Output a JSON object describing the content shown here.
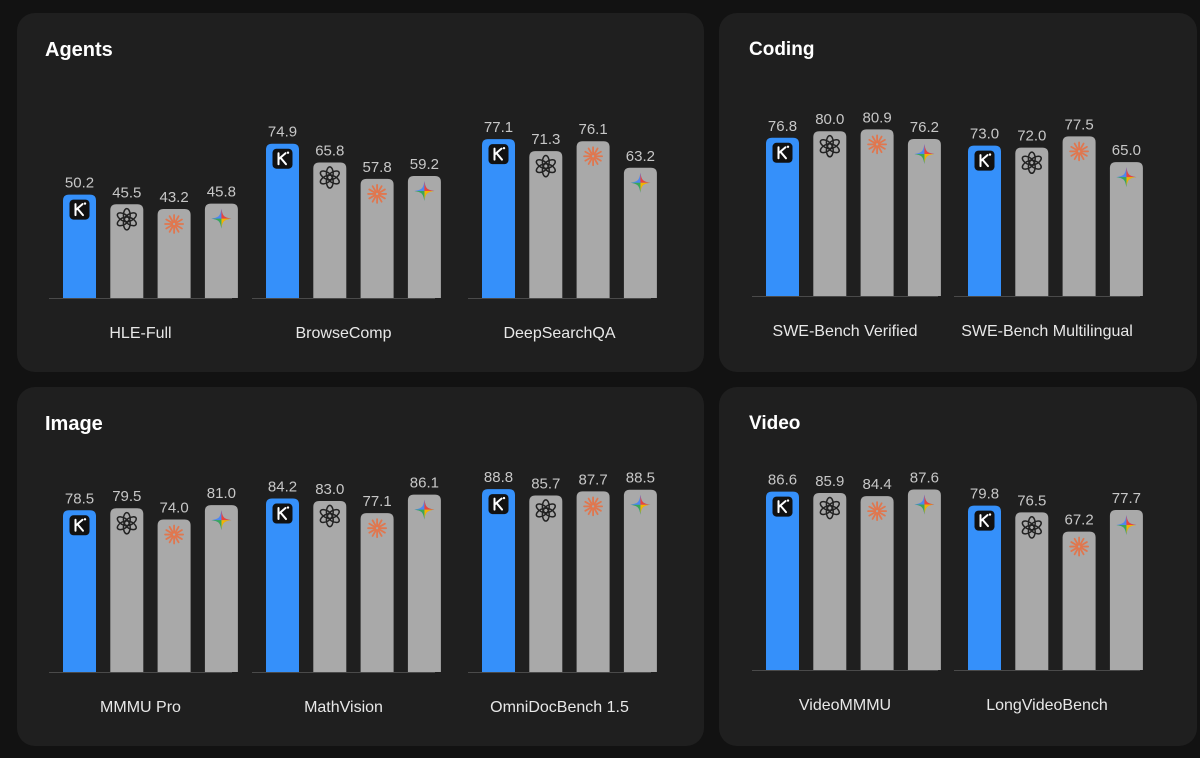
{
  "colors": {
    "highlight": "#3590fa",
    "bar": "#a9a9a9",
    "baseline": "#4a4a4a",
    "claude": "#e0774f"
  },
  "icons": [
    "k-logo-icon",
    "openai-icon",
    "claude-icon",
    "gemini-icon"
  ],
  "chart_data": [
    {
      "type": "bar",
      "title": "Agents",
      "ylim": [
        0,
        100
      ],
      "categories": [
        "HLE-Full",
        "BrowseComp",
        "DeepSearchQA"
      ],
      "series": [
        {
          "values": [
            50.2,
            74.9,
            77.1
          ]
        },
        {
          "values": [
            45.5,
            65.8,
            71.3
          ]
        },
        {
          "values": [
            43.2,
            57.8,
            76.1
          ]
        },
        {
          "values": [
            45.8,
            59.2,
            63.2
          ]
        }
      ]
    },
    {
      "type": "bar",
      "title": "Coding",
      "ylim": [
        0,
        100
      ],
      "categories": [
        "SWE-Bench Verified",
        "SWE-Bench Multilingual"
      ],
      "series": [
        {
          "values": [
            76.8,
            73.0
          ]
        },
        {
          "values": [
            80.0,
            72.0
          ]
        },
        {
          "values": [
            80.9,
            77.5
          ]
        },
        {
          "values": [
            76.2,
            65.0
          ]
        }
      ]
    },
    {
      "type": "bar",
      "title": "Image",
      "ylim": [
        0,
        100
      ],
      "categories": [
        "MMMU Pro",
        "MathVision",
        "OmniDocBench 1.5"
      ],
      "series": [
        {
          "values": [
            78.5,
            84.2,
            88.8
          ]
        },
        {
          "values": [
            79.5,
            83.0,
            85.7
          ]
        },
        {
          "values": [
            74.0,
            77.1,
            87.7
          ]
        },
        {
          "values": [
            81.0,
            86.1,
            88.5
          ]
        }
      ]
    },
    {
      "type": "bar",
      "title": "Video",
      "ylim": [
        0,
        100
      ],
      "categories": [
        "VideoMMMU",
        "LongVideoBench"
      ],
      "series": [
        {
          "values": [
            86.6,
            79.8
          ]
        },
        {
          "values": [
            85.9,
            76.5
          ]
        },
        {
          "values": [
            84.4,
            67.2
          ]
        },
        {
          "values": [
            87.6,
            77.7
          ]
        }
      ]
    }
  ]
}
